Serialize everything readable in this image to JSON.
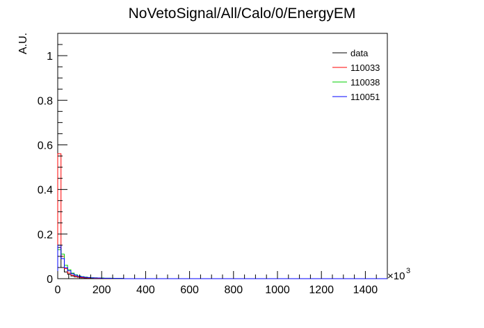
{
  "chart_data": {
    "type": "line",
    "title": "NoVetoSignal/All/Calo/0/EnergyEM",
    "ylabel": "A.U.",
    "xlabel": "",
    "x_exponent_label": "×10",
    "x_exponent_power": "3",
    "xlim": [
      0,
      1500
    ],
    "ylim": [
      0,
      1.1
    ],
    "x_ticks": [
      0,
      200,
      400,
      600,
      800,
      1000,
      1200,
      1400
    ],
    "y_ticks": [
      0,
      0.2,
      0.4,
      0.6,
      0.8,
      1
    ],
    "y_tick_labels": [
      "0",
      "0.2",
      "0.4",
      "0.6",
      "0.8",
      "1"
    ],
    "bin_width": 15,
    "legend_position": "top-right",
    "series": [
      {
        "name": "data",
        "color": "#000000",
        "values": [
          0.14,
          0.05,
          0.03,
          0.02,
          0.012,
          0.008,
          0.006,
          0.004,
          0.003,
          0.003,
          0.002,
          0.002,
          0.002,
          0.001,
          0.001,
          0.001,
          0.001,
          0.001,
          0.001,
          0.001
        ]
      },
      {
        "name": "110033",
        "color": "#ff0000",
        "values": [
          0.56,
          0.1,
          0.045,
          0.025,
          0.015,
          0.01,
          0.007,
          0.005,
          0.004,
          0.003,
          0.003,
          0.002,
          0.002,
          0.002,
          0.001,
          0.001,
          0.001,
          0.001,
          0.001,
          0.001
        ]
      },
      {
        "name": "110038",
        "color": "#00cc00",
        "values": [
          0.13,
          0.11,
          0.06,
          0.04,
          0.025,
          0.017,
          0.012,
          0.009,
          0.007,
          0.005,
          0.004,
          0.004,
          0.003,
          0.003,
          0.002,
          0.002,
          0.002,
          0.001,
          0.001,
          0.001
        ]
      },
      {
        "name": "110051",
        "color": "#0000ff",
        "values": [
          0.15,
          0.09,
          0.05,
          0.035,
          0.022,
          0.015,
          0.011,
          0.008,
          0.006,
          0.005,
          0.004,
          0.003,
          0.003,
          0.002,
          0.002,
          0.002,
          0.001,
          0.001,
          0.001,
          0.001
        ]
      }
    ]
  }
}
